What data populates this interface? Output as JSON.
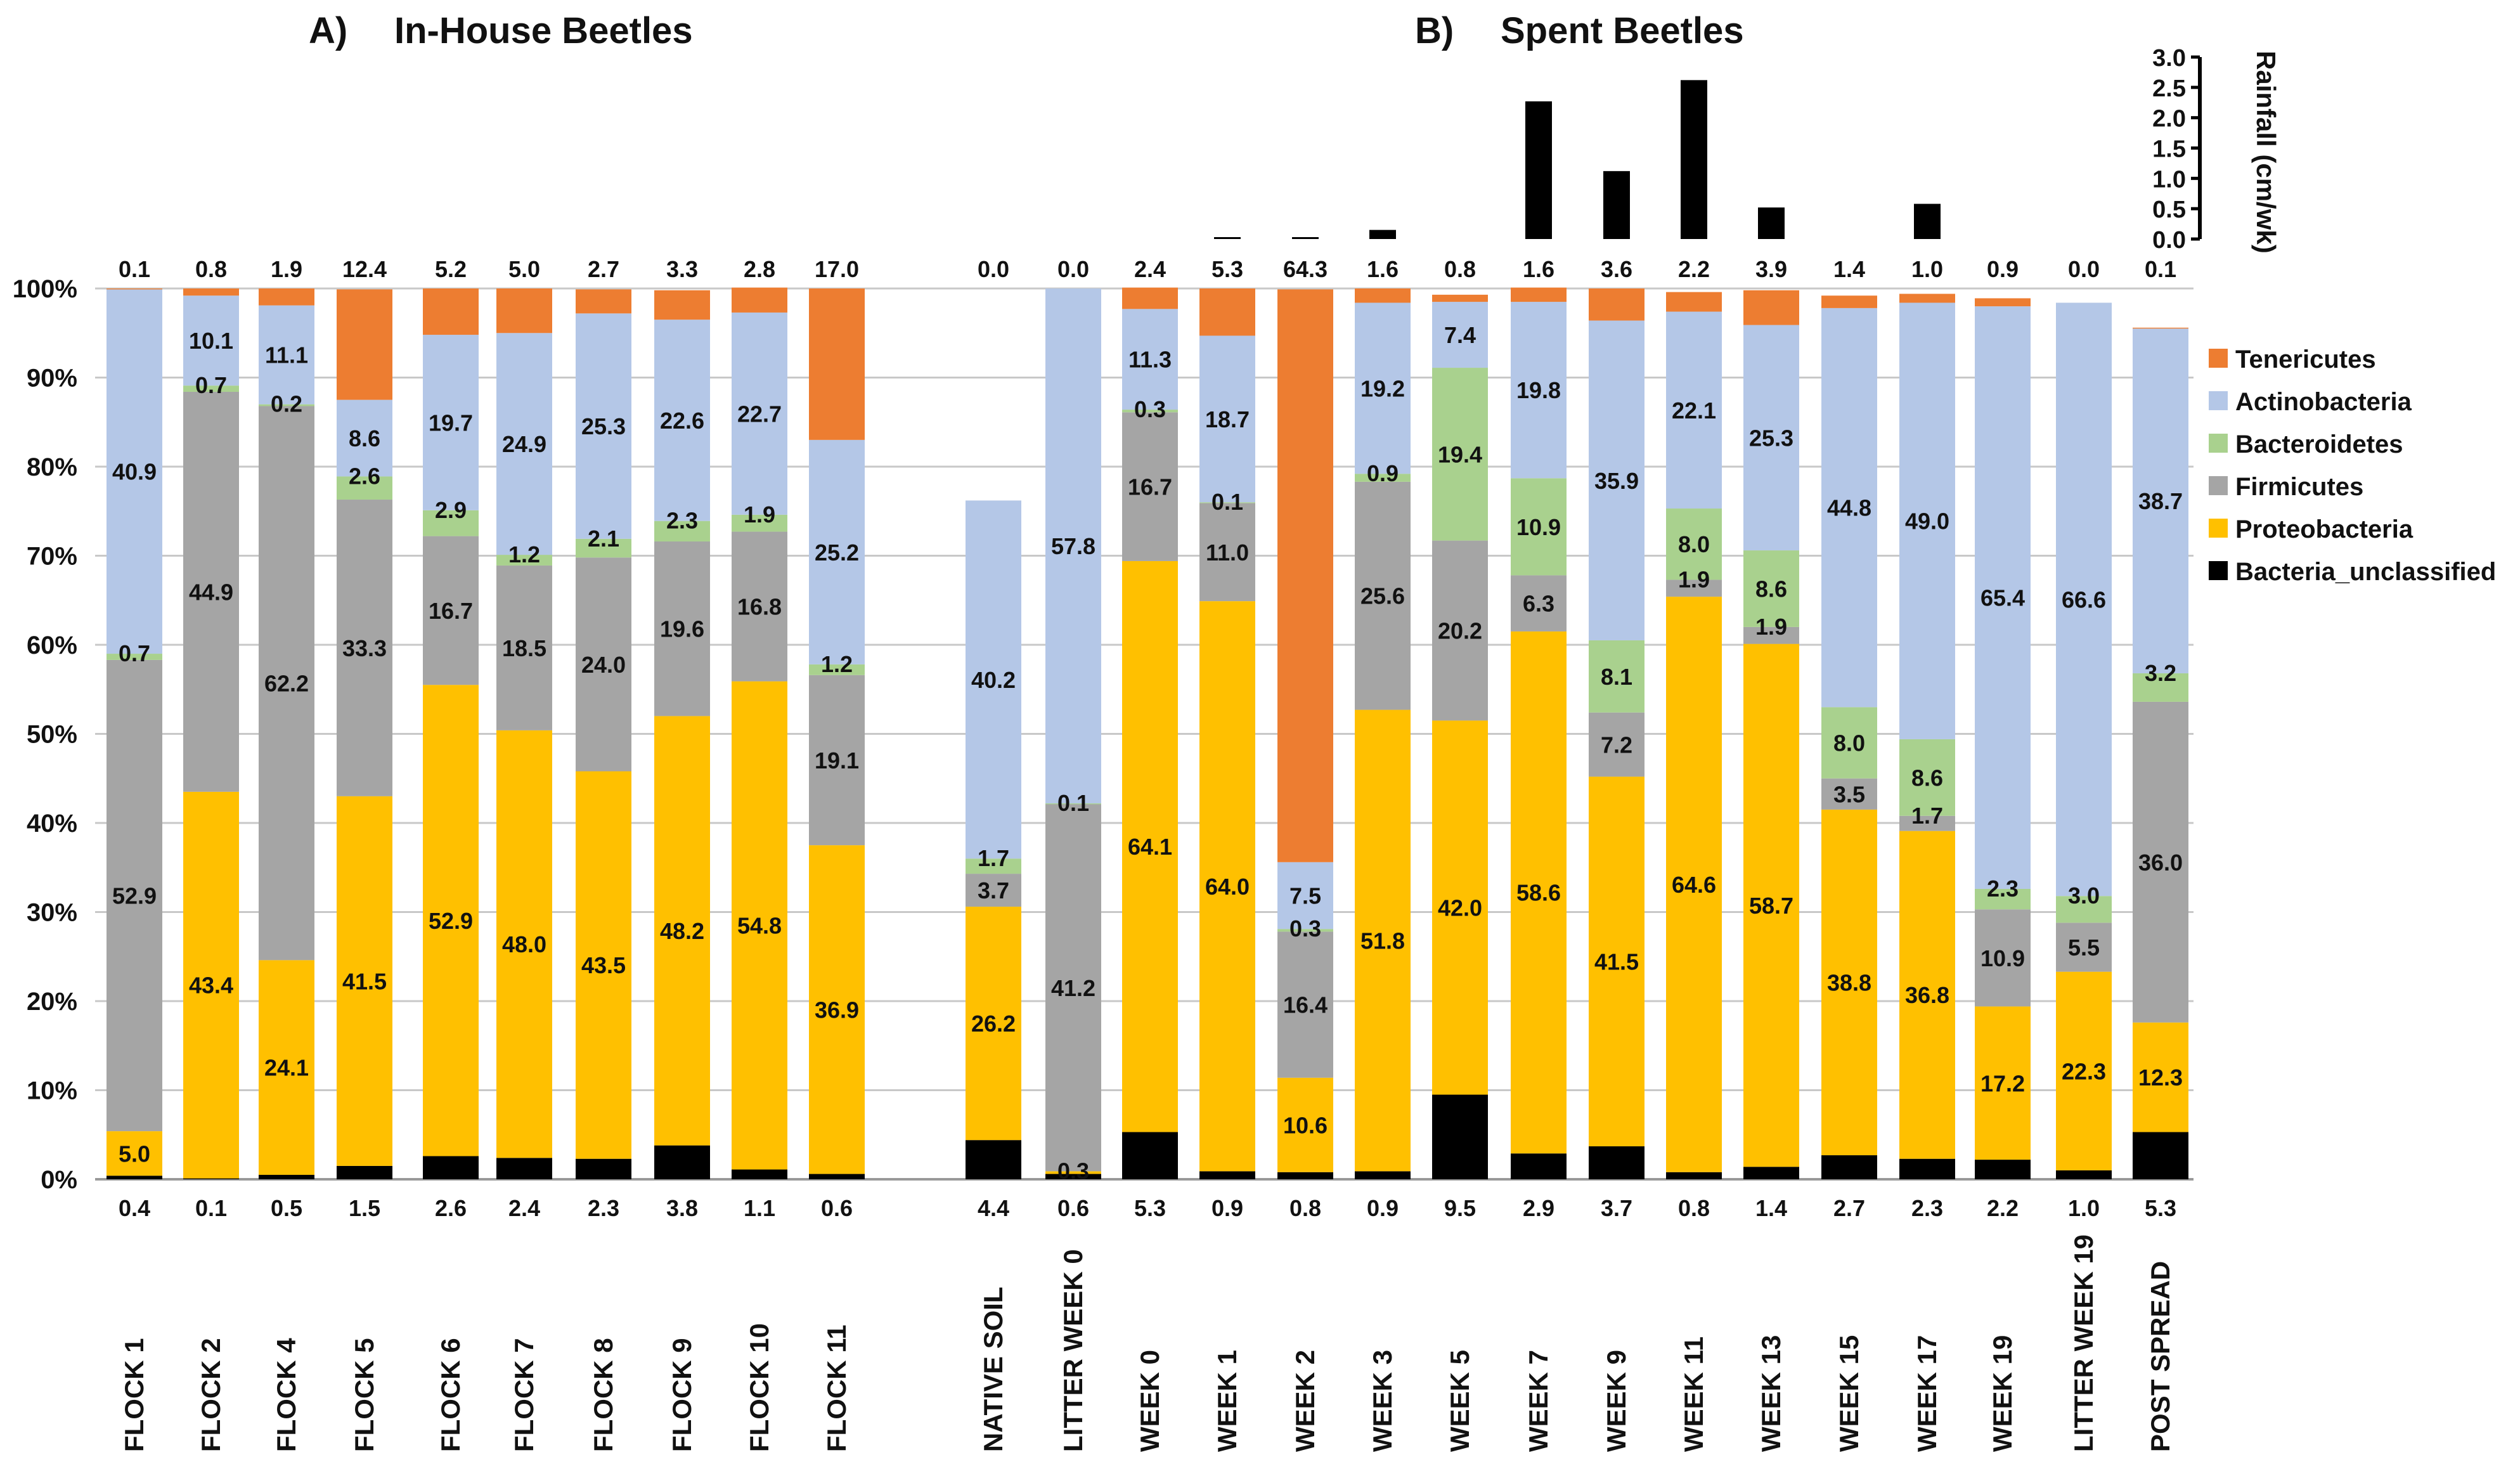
{
  "chart_data": {
    "type": "bar",
    "stacked": true,
    "panels": [
      {
        "title": "A)",
        "subtitle": "In-House Beetles"
      },
      {
        "title": "B)",
        "subtitle": "Spent Beetles"
      }
    ],
    "ylabel_ticks": [
      "0%",
      "10%",
      "20%",
      "30%",
      "40%",
      "50%",
      "60%",
      "70%",
      "80%",
      "90%",
      "100%"
    ],
    "ylim": [
      0,
      100
    ],
    "grid": true,
    "legend_position": "right",
    "series_order": [
      "Bacteria_unclassified",
      "Proteobacteria",
      "Firmicutes",
      "Bacteroidetes",
      "Actinobacteria",
      "Tenericutes"
    ],
    "legend": [
      "Tenericutes",
      "Actinobacteria",
      "Bacteroidetes",
      "Firmicutes",
      "Proteobacteria",
      "Bacteria_unclassified"
    ],
    "colors": {
      "Tenericutes": "#ED7D31",
      "Actinobacteria": "#B4C7E7",
      "Bacteroidetes": "#A9D18E",
      "Firmicutes": "#A5A5A5",
      "Proteobacteria": "#FFC000",
      "Bacteria_unclassified": "#000000"
    },
    "groups": [
      {
        "panel": 0,
        "bars": [
          {
            "category": "FLOCK 1",
            "values": [
              0.4,
              5.0,
              52.9,
              0.7,
              40.9,
              0.1
            ],
            "labels": [
              "0.4",
              "5.0",
              "52.9",
              "0.7",
              "40.9",
              "0.1"
            ]
          },
          {
            "category": "FLOCK 2",
            "values": [
              0.1,
              43.4,
              44.9,
              0.7,
              10.1,
              0.8
            ],
            "labels": [
              "0.1",
              "43.4",
              "44.9",
              "0.7",
              "10.1",
              "0.8"
            ]
          },
          {
            "category": "FLOCK 4",
            "values": [
              0.5,
              24.1,
              62.2,
              0.2,
              11.1,
              1.9
            ],
            "labels": [
              "0.5",
              "24.1",
              "62.2",
              "0.2",
              "11.1",
              "1.9"
            ]
          },
          {
            "category": "FLOCK 5",
            "values": [
              1.5,
              41.5,
              33.3,
              2.6,
              8.6,
              12.4
            ],
            "labels": [
              "1.5",
              "41.5",
              "33.3",
              "2.6",
              "8.6",
              "12.4"
            ]
          },
          {
            "category": "FLOCK 6",
            "values": [
              2.6,
              52.9,
              16.7,
              2.9,
              19.7,
              5.2
            ],
            "labels": [
              "2.6",
              "52.9",
              "16.7",
              "2.9",
              "19.7",
              "5.2"
            ]
          },
          {
            "category": "FLOCK 7",
            "values": [
              2.4,
              48.0,
              18.5,
              1.2,
              24.9,
              5.0
            ],
            "labels": [
              "2.4",
              "48.0",
              "18.5",
              "1.2",
              "24.9",
              "5.0"
            ]
          },
          {
            "category": "FLOCK 8",
            "values": [
              2.3,
              43.5,
              24.0,
              2.1,
              25.3,
              2.7
            ],
            "labels": [
              "2.3",
              "43.5",
              "24.0",
              "2.1",
              "25.3",
              "2.7"
            ]
          },
          {
            "category": "FLOCK 9",
            "values": [
              3.8,
              48.2,
              19.6,
              2.3,
              22.6,
              3.3
            ],
            "labels": [
              "3.8",
              "48.2",
              "19.6",
              "2.3",
              "22.6",
              "3.3"
            ]
          },
          {
            "category": "FLOCK 10",
            "values": [
              1.1,
              54.8,
              16.8,
              1.9,
              22.7,
              2.8
            ],
            "labels": [
              "1.1",
              "54.8",
              "16.8",
              "1.9",
              "22.7",
              "2.8"
            ]
          },
          {
            "category": "FLOCK 11",
            "values": [
              0.6,
              36.9,
              19.1,
              1.2,
              25.2,
              17.0
            ],
            "labels": [
              "0.6",
              "36.9",
              "19.1",
              "1.2",
              "25.2",
              "17.0"
            ]
          }
        ]
      },
      {
        "panel": 1,
        "bars": [
          {
            "category": "NATIVE SOIL",
            "values": [
              4.4,
              26.2,
              3.7,
              1.7,
              40.2,
              0.0
            ],
            "labels": [
              "4.4",
              "26.2",
              "3.7",
              "1.7",
              "40.2",
              "0.0"
            ]
          },
          {
            "category": "LITTER WEEK 0",
            "values": [
              0.6,
              0.3,
              41.2,
              0.1,
              57.8,
              0.0
            ],
            "labels": [
              "0.6",
              "0.3",
              "41.2",
              "0.1",
              "57.8",
              "0.0"
            ]
          },
          {
            "category": "WEEK 0",
            "values": [
              5.3,
              64.1,
              16.7,
              0.3,
              11.3,
              2.4
            ],
            "labels": [
              "5.3",
              "64.1",
              "16.7",
              "0.3",
              "11.3",
              "2.4"
            ]
          },
          {
            "category": "WEEK 1",
            "values": [
              0.9,
              64.0,
              11.0,
              0.1,
              18.7,
              5.3
            ],
            "labels": [
              "0.9",
              "64.0",
              "11.0",
              "0.1",
              "18.7",
              "5.3"
            ]
          },
          {
            "category": "WEEK 2",
            "values": [
              0.8,
              10.6,
              16.4,
              0.3,
              7.5,
              64.3
            ],
            "labels": [
              "0.8",
              "10.6",
              "16.4",
              "0.3",
              "7.5",
              "64.3"
            ]
          },
          {
            "category": "WEEK 3",
            "values": [
              0.9,
              51.8,
              25.6,
              0.9,
              19.2,
              1.6
            ],
            "labels": [
              "0.9",
              "51.8",
              "25.6",
              "0.9",
              "19.2",
              "1.6"
            ]
          },
          {
            "category": "WEEK 5",
            "values": [
              9.5,
              42.0,
              20.2,
              19.4,
              7.4,
              0.8
            ],
            "labels": [
              "9.5",
              "42.0",
              "20.2",
              "19.4",
              "7.4",
              "0.8"
            ]
          },
          {
            "category": "WEEK 7",
            "values": [
              2.9,
              58.6,
              6.3,
              10.9,
              19.8,
              1.6
            ],
            "labels": [
              "2.9",
              "58.6",
              "6.3",
              "10.9",
              "19.8",
              "1.6"
            ]
          },
          {
            "category": "WEEK 9",
            "values": [
              3.7,
              41.5,
              7.2,
              8.1,
              35.9,
              3.6
            ],
            "labels": [
              "3.7",
              "41.5",
              "7.2",
              "8.1",
              "35.9",
              "3.6"
            ]
          },
          {
            "category": "WEEK 11",
            "values": [
              0.8,
              64.6,
              1.9,
              8.0,
              22.1,
              2.2
            ],
            "labels": [
              "0.8",
              "64.6",
              "1.9",
              "8.0",
              "22.1",
              "2.2"
            ]
          },
          {
            "category": "WEEK 13",
            "values": [
              1.4,
              58.7,
              1.9,
              8.6,
              25.3,
              3.9
            ],
            "labels": [
              "1.4",
              "58.7",
              "1.9",
              "8.6",
              "25.3",
              "3.9"
            ]
          },
          {
            "category": "WEEK 15",
            "values": [
              2.7,
              38.8,
              3.5,
              8.0,
              44.8,
              1.4
            ],
            "labels": [
              "2.7",
              "38.8",
              "3.5",
              "8.0",
              "44.8",
              "1.4"
            ]
          },
          {
            "category": "WEEK 17",
            "values": [
              2.3,
              36.8,
              1.7,
              8.6,
              49.0,
              1.0
            ],
            "labels": [
              "2.3",
              "36.8",
              "1.7",
              "8.6",
              "49.0",
              "1.0"
            ]
          },
          {
            "category": "WEEK 19",
            "values": [
              2.2,
              17.2,
              10.9,
              2.3,
              65.4,
              0.9
            ],
            "labels": [
              "2.2",
              "17.2",
              "10.9",
              "2.3",
              "65.4",
              "0.9"
            ]
          },
          {
            "category": "LITTER WEEK 19",
            "values": [
              1.0,
              22.3,
              5.5,
              3.0,
              66.6,
              0.0
            ],
            "labels": [
              "1.0",
              "22.3",
              "5.5",
              "3.0",
              "66.6",
              "0.0"
            ]
          },
          {
            "category": "POST SPREAD",
            "values": [
              5.3,
              12.3,
              36.0,
              3.2,
              38.7,
              0.1
            ],
            "labels": [
              "5.3",
              "12.3",
              "36.0",
              "3.2",
              "38.7",
              "0.1"
            ]
          }
        ]
      }
    ],
    "rainfall": {
      "type": "bar",
      "ylabel": "Rainfall (cm/wk)",
      "ylim": [
        0,
        3.0
      ],
      "ticks": [
        "0.0",
        "0.5",
        "1.0",
        "1.5",
        "2.0",
        "2.5",
        "3.0"
      ],
      "categories": [
        "WEEK 1",
        "WEEK 2",
        "WEEK 3",
        "WEEK 7",
        "WEEK 9",
        "WEEK 11",
        "WEEK 13",
        "WEEK 17"
      ],
      "values": [
        0.03,
        0.03,
        0.15,
        2.27,
        1.12,
        2.62,
        0.52,
        0.58
      ]
    }
  }
}
